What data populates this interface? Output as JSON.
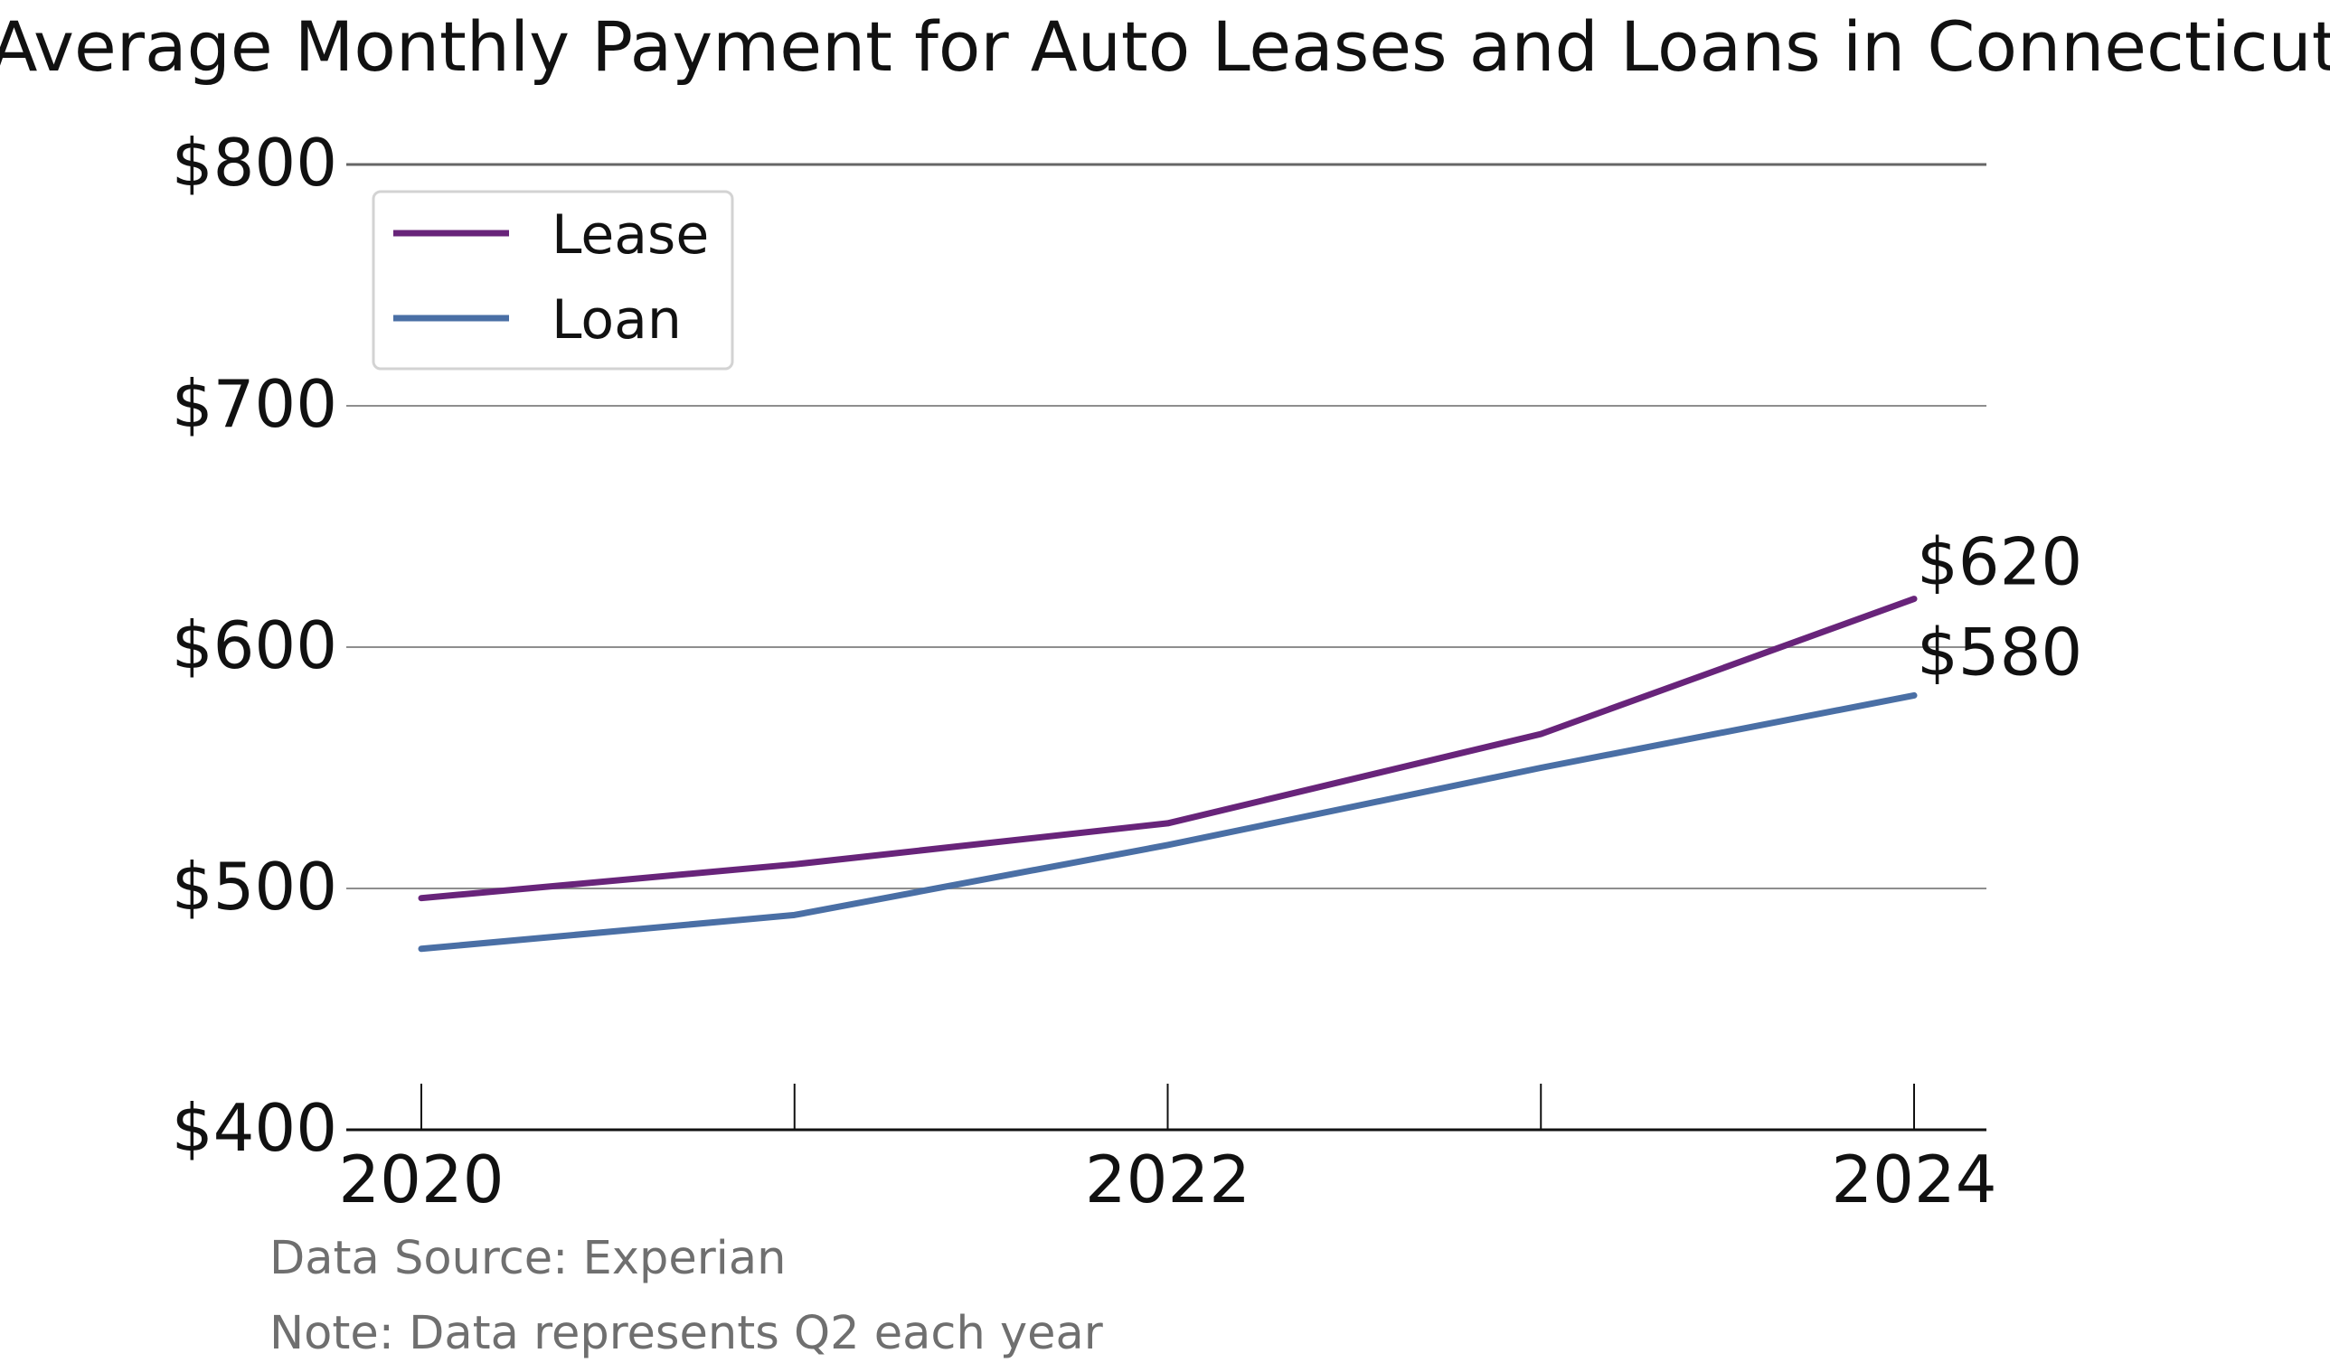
{
  "chart_data": {
    "type": "line",
    "title": "Average Monthly Payment for Auto Leases and Loans in Connecticut",
    "xlabel": "",
    "ylabel": "",
    "x": [
      2020,
      2021,
      2022,
      2023,
      2024
    ],
    "x_tick_labels": [
      "2020",
      "2022",
      "2024"
    ],
    "y_tick_labels": [
      "$400",
      "$500",
      "$600",
      "$700",
      "$800"
    ],
    "ylim": [
      400,
      800
    ],
    "xlim": [
      2020,
      2024
    ],
    "grid": "horizontal",
    "legend_position": "top-left",
    "series": [
      {
        "name": "Lease",
        "color": "#68247a",
        "values": [
          496,
          510,
          527,
          564,
          620
        ],
        "end_label": "$620"
      },
      {
        "name": "Loan",
        "color": "#4a6fa5",
        "values": [
          475,
          489,
          518,
          550,
          580
        ],
        "end_label": "$580"
      }
    ],
    "notes": [
      "Data Source: Experian",
      "Note: Data represents Q2 each year"
    ]
  }
}
